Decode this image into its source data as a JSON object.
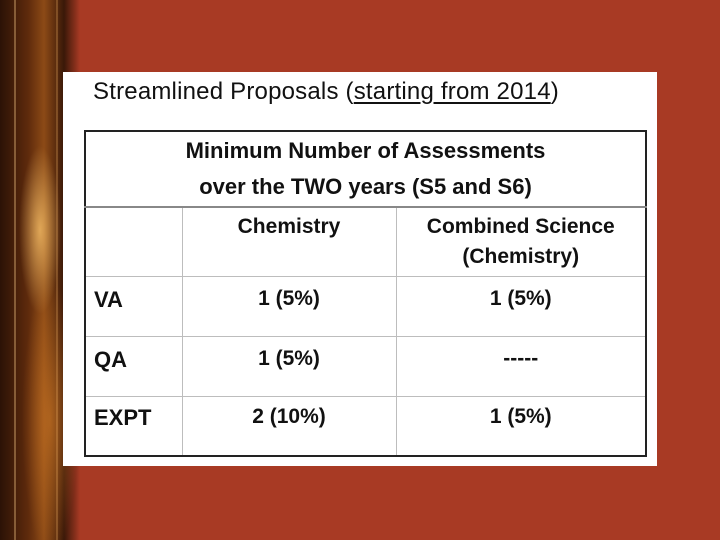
{
  "heading": {
    "prefix": "Streamlined Proposals (",
    "underlined": "starting from 2014",
    "suffix": ")"
  },
  "table": {
    "title_line1": "Minimum Number of Assessments",
    "title_line2": "over the TWO years (S5 and S6)",
    "columns": [
      "",
      "Chemistry",
      "Combined Science",
      "(Chemistry)"
    ],
    "rows": [
      {
        "label": "VA",
        "chemistry": "1 (5%)",
        "combined": "1 (5%)"
      },
      {
        "label": "QA",
        "chemistry": "1 (5%)",
        "combined": "-----"
      },
      {
        "label": "EXPT",
        "chemistry": "2 (10%)",
        "combined": "1 (5%)"
      }
    ]
  },
  "colors": {
    "background": "#a83a24",
    "panel": "#ffffff",
    "text": "#111111"
  }
}
